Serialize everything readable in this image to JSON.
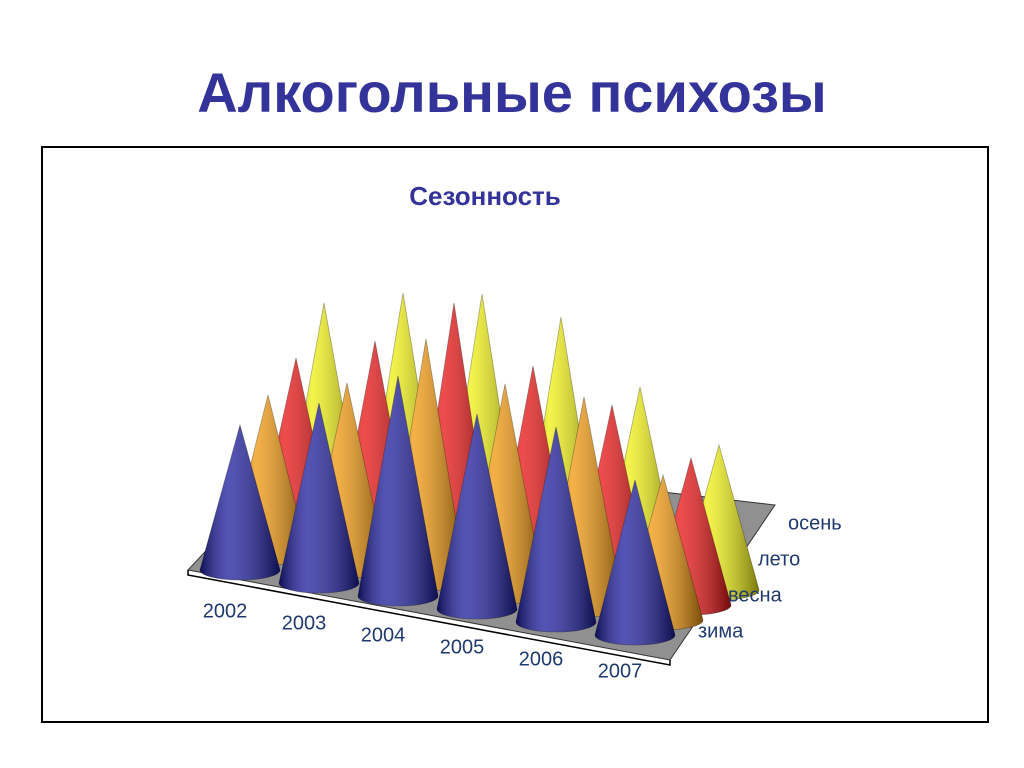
{
  "title": "Алкогольные психозы",
  "chart_data": {
    "type": "cone3d",
    "title": "Сезонность",
    "categories": [
      "2002",
      "2003",
      "2004",
      "2005",
      "2006",
      "2007"
    ],
    "series": [
      {
        "name": "зима",
        "color": "#1a1a9c",
        "values": [
          145,
          180,
          220,
          195,
          195,
          155
        ]
      },
      {
        "name": "весна",
        "color": "#f0960a",
        "values": [
          160,
          185,
          242,
          210,
          210,
          145
        ]
      },
      {
        "name": "лето",
        "color": "#e81010",
        "values": [
          182,
          212,
          263,
          213,
          187,
          147
        ]
      },
      {
        "name": "осень",
        "color": "#f0f010",
        "values": [
          222,
          245,
          257,
          247,
          190,
          145
        ]
      }
    ]
  }
}
